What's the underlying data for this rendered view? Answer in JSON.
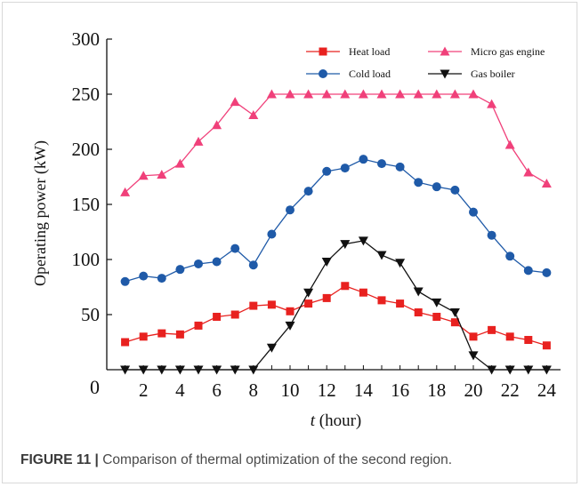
{
  "figure": {
    "label": "FIGURE 11 |",
    "caption": " Comparison of thermal optimization of the second region."
  },
  "chart_data": {
    "type": "line",
    "xlabel_italic": "t",
    "xlabel_rest": " (hour)",
    "ylabel": "Operating power  (kW)",
    "origin_label": "0",
    "xlim": [
      0,
      24
    ],
    "ylim": [
      0,
      300
    ],
    "x_ticks": [
      2,
      4,
      6,
      8,
      10,
      12,
      14,
      16,
      18,
      20,
      22,
      24
    ],
    "y_ticks": [
      50,
      100,
      150,
      200,
      250,
      300
    ],
    "grid": false,
    "legend_position": "top-right",
    "x": [
      1,
      2,
      3,
      4,
      5,
      6,
      7,
      8,
      9,
      10,
      11,
      12,
      13,
      14,
      15,
      16,
      17,
      18,
      19,
      20,
      21,
      22,
      23,
      24
    ],
    "series": [
      {
        "name": "Heat load",
        "color": "#e8211f",
        "marker": "square",
        "values": [
          25,
          30,
          33,
          32,
          40,
          48,
          50,
          58,
          59,
          53,
          60,
          65,
          76,
          70,
          63,
          60,
          52,
          48,
          43,
          30,
          36,
          30,
          27,
          22
        ]
      },
      {
        "name": "Micro gas engine",
        "color": "#f0407a",
        "marker": "triangle-up",
        "values": [
          161,
          176,
          177,
          187,
          207,
          222,
          243,
          231,
          250,
          250,
          250,
          250,
          250,
          250,
          250,
          250,
          250,
          250,
          250,
          250,
          241,
          204,
          179,
          169
        ]
      },
      {
        "name": "Cold load",
        "color": "#1f5aa8",
        "marker": "circle",
        "values": [
          80,
          85,
          83,
          91,
          96,
          98,
          110,
          95,
          123,
          145,
          162,
          180,
          183,
          191,
          187,
          184,
          170,
          166,
          163,
          143,
          122,
          103,
          90,
          88
        ]
      },
      {
        "name": "Gas boiler",
        "color": "#111111",
        "marker": "triangle-down",
        "values": [
          0,
          0,
          0,
          0,
          0,
          0,
          0,
          0,
          20,
          40,
          70,
          98,
          114,
          117,
          104,
          97,
          71,
          61,
          52,
          13,
          0,
          0,
          0,
          0
        ]
      }
    ]
  }
}
